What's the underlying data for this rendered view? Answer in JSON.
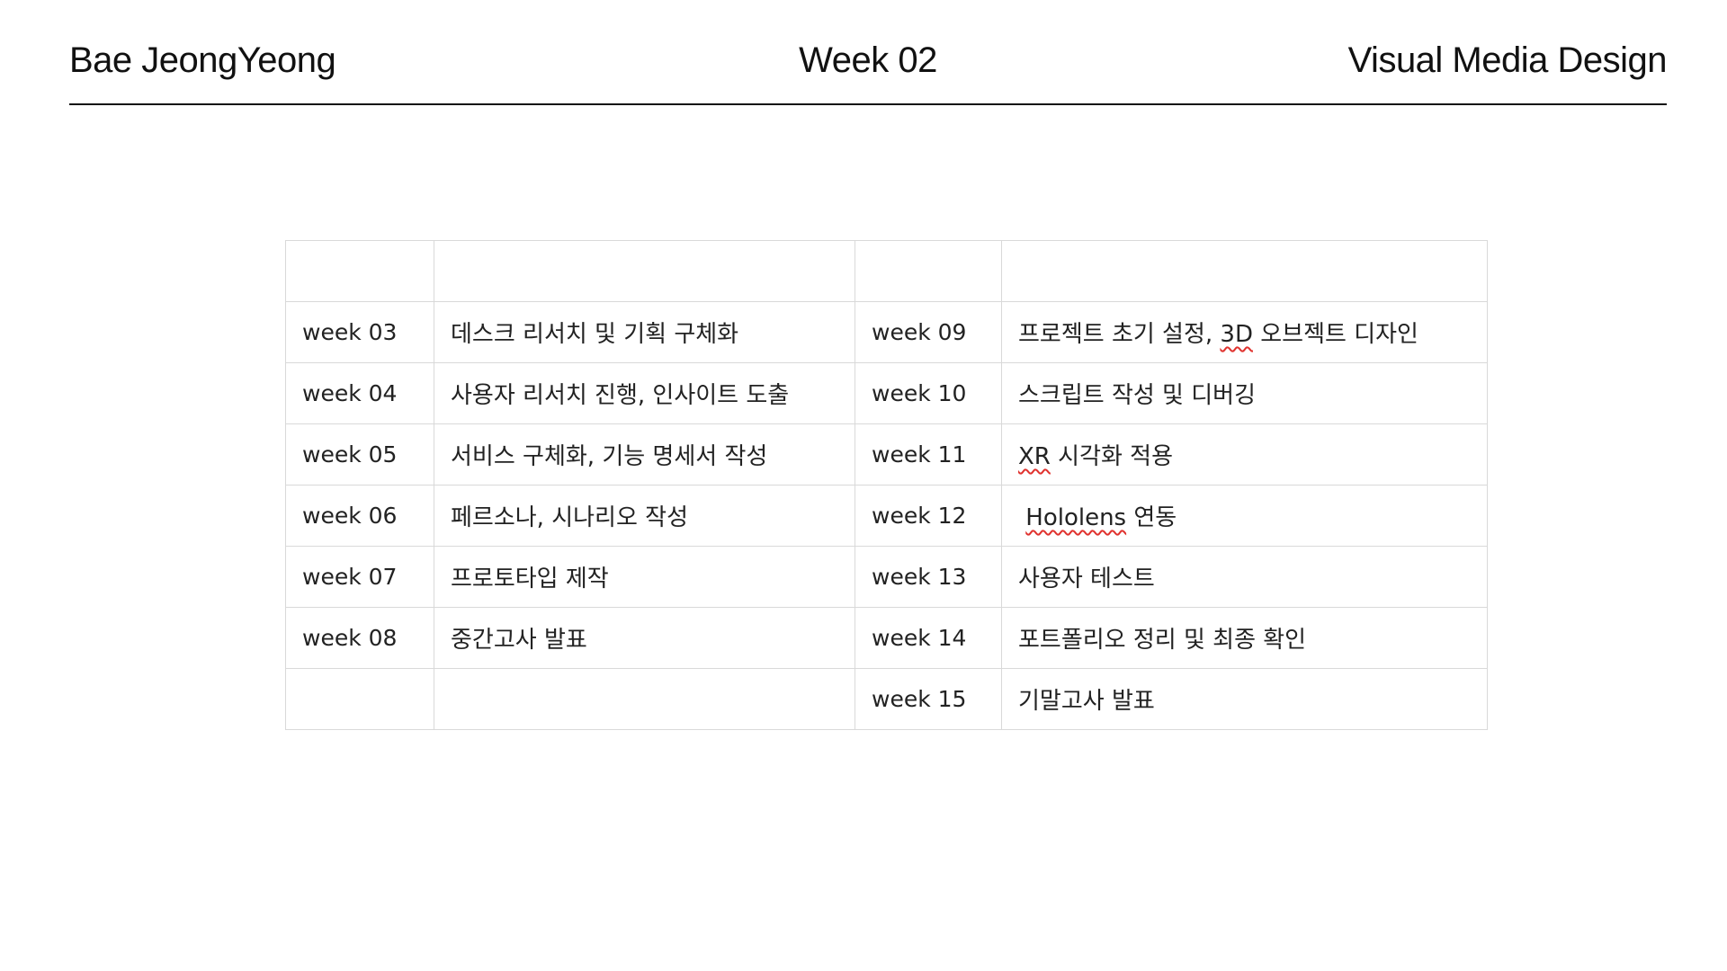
{
  "header": {
    "author": "Bae JeongYeong",
    "week": "Week 02",
    "course": "Visual Media Design"
  },
  "schedule": {
    "rows": [
      {
        "week_a": "",
        "task_a": "",
        "week_b": "",
        "task_b_pre": "",
        "task_b_mark": "",
        "task_b_post": ""
      },
      {
        "week_a": "week 03",
        "task_a": "데스크 리서치 및 기획 구체화",
        "week_b": "week 09",
        "task_b_pre": "프로젝트 초기 설정, ",
        "task_b_mark": "3D",
        "task_b_post": " 오브젝트 디자인"
      },
      {
        "week_a": "week 04",
        "task_a": "사용자 리서치 진행, 인사이트 도출",
        "week_b": "week 10",
        "task_b_pre": "스크립트 작성 및 디버깅",
        "task_b_mark": "",
        "task_b_post": ""
      },
      {
        "week_a": "week 05",
        "task_a": "서비스 구체화, 기능 명세서 작성",
        "week_b": "week 11",
        "task_b_pre": "",
        "task_b_mark": "XR",
        "task_b_post": " 시각화 적용"
      },
      {
        "week_a": "week 06",
        "task_a": "페르소나, 시나리오 작성",
        "week_b": "week 12",
        "task_b_pre": " ",
        "task_b_mark": "Hololens",
        "task_b_post": " 연동"
      },
      {
        "week_a": "week 07",
        "task_a": "프로토타입 제작",
        "week_b": "week 13",
        "task_b_pre": "사용자 테스트",
        "task_b_mark": "",
        "task_b_post": ""
      },
      {
        "week_a": "week 08",
        "task_a": "중간고사 발표",
        "week_b": "week 14",
        "task_b_pre": "포트폴리오 정리 및 최종 확인",
        "task_b_mark": "",
        "task_b_post": ""
      },
      {
        "week_a": "",
        "task_a": "",
        "week_b": "week 15",
        "task_b_pre": "기말고사 발표",
        "task_b_mark": "",
        "task_b_post": ""
      }
    ]
  }
}
